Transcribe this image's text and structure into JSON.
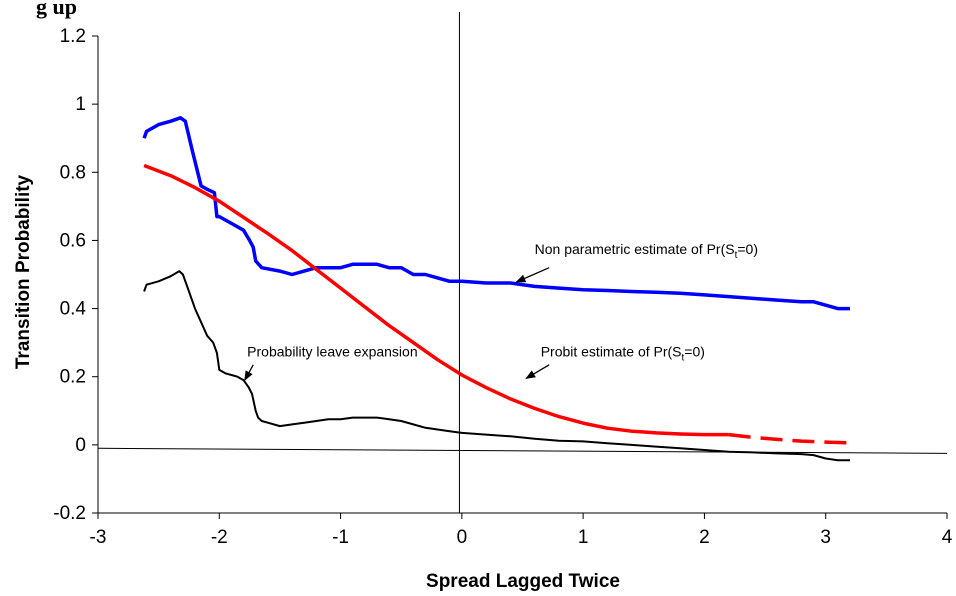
{
  "chart_data": {
    "type": "line",
    "title_fragment": "g up",
    "xlabel": "Spread Lagged Twice",
    "ylabel": "Transition Probability",
    "xlim": [
      -3,
      4
    ],
    "ylim": [
      -0.2,
      1.2
    ],
    "x_ticks": [
      -3,
      -2,
      -1,
      0,
      1,
      2,
      3,
      4
    ],
    "y_ticks": [
      -0.2,
      0,
      0.2,
      0.4,
      0.6,
      0.8,
      1,
      1.2
    ],
    "x_tick_labels": [
      "-3",
      "-2",
      "-1",
      "0",
      "1",
      "2",
      "3",
      "4"
    ],
    "y_tick_labels": [
      "-0.2",
      "0",
      "0.2",
      "0.4",
      "0.6",
      "0.8",
      "1",
      "1.2"
    ],
    "grid": false,
    "legend": "none",
    "series": [
      {
        "color": "#0000ff",
        "style": "solid",
        "x": [
          -2.62,
          -2.6,
          -2.5,
          -2.4,
          -2.32,
          -2.28,
          -2.22,
          -2.15,
          -2.1,
          -2.04,
          -2.02,
          -2.0,
          -1.9,
          -1.8,
          -1.75,
          -1.72,
          -1.7,
          -1.65,
          -1.5,
          -1.4,
          -1.3,
          -1.2,
          -1.1,
          -1.0,
          -0.9,
          -0.8,
          -0.7,
          -0.6,
          -0.5,
          -0.4,
          -0.3,
          -0.2,
          -0.1,
          0.0,
          0.2,
          0.4,
          0.6,
          0.8,
          1.0,
          1.2,
          1.4,
          1.6,
          1.8,
          2.0,
          2.2,
          2.4,
          2.6,
          2.8,
          2.9,
          3.0,
          3.1,
          3.2
        ],
        "y": [
          0.9,
          0.92,
          0.94,
          0.95,
          0.96,
          0.95,
          0.86,
          0.76,
          0.75,
          0.74,
          0.67,
          0.67,
          0.65,
          0.63,
          0.6,
          0.58,
          0.54,
          0.52,
          0.51,
          0.5,
          0.51,
          0.52,
          0.52,
          0.52,
          0.53,
          0.53,
          0.53,
          0.52,
          0.52,
          0.5,
          0.5,
          0.49,
          0.48,
          0.48,
          0.475,
          0.475,
          0.465,
          0.46,
          0.455,
          0.453,
          0.45,
          0.448,
          0.445,
          0.44,
          0.435,
          0.43,
          0.425,
          0.42,
          0.42,
          0.41,
          0.4,
          0.4
        ]
      },
      {
        "color": "#ff0000",
        "style": "solid",
        "x": [
          -2.62,
          -2.4,
          -2.2,
          -2.0,
          -1.8,
          -1.6,
          -1.4,
          -1.2,
          -1.0,
          -0.8,
          -0.6,
          -0.4,
          -0.2,
          0.0,
          0.2,
          0.4,
          0.6,
          0.8,
          1.0,
          1.2,
          1.4,
          1.6,
          1.8,
          2.0,
          2.2
        ],
        "y": [
          0.82,
          0.79,
          0.755,
          0.715,
          0.668,
          0.62,
          0.57,
          0.515,
          0.46,
          0.405,
          0.35,
          0.3,
          0.25,
          0.205,
          0.168,
          0.135,
          0.107,
          0.083,
          0.064,
          0.049,
          0.04,
          0.035,
          0.032,
          0.03,
          0.03
        ]
      },
      {
        "color": "#ff0000",
        "style": "dashed",
        "x": [
          2.2,
          2.4,
          2.6,
          2.8,
          3.0,
          3.2
        ],
        "y": [
          0.03,
          0.022,
          0.016,
          0.011,
          0.008,
          0.006
        ]
      },
      {
        "color": "#000000",
        "style": "solid",
        "x": [
          -2.62,
          -2.6,
          -2.5,
          -2.4,
          -2.33,
          -2.3,
          -2.25,
          -2.2,
          -2.15,
          -2.1,
          -2.05,
          -2.02,
          -2.0,
          -1.95,
          -1.9,
          -1.85,
          -1.8,
          -1.76,
          -1.73,
          -1.7,
          -1.68,
          -1.65,
          -1.6,
          -1.5,
          -1.4,
          -1.3,
          -1.2,
          -1.1,
          -1.0,
          -0.9,
          -0.8,
          -0.7,
          -0.6,
          -0.5,
          -0.4,
          -0.3,
          -0.2,
          -0.1,
          0.0,
          0.2,
          0.4,
          0.6,
          0.8,
          1.0,
          1.2,
          1.4,
          1.6,
          1.8,
          2.0,
          2.2,
          2.4,
          2.6,
          2.8,
          2.9,
          3.0,
          3.1,
          3.2
        ],
        "y": [
          0.45,
          0.47,
          0.48,
          0.495,
          0.51,
          0.5,
          0.45,
          0.4,
          0.36,
          0.32,
          0.3,
          0.27,
          0.22,
          0.21,
          0.205,
          0.2,
          0.19,
          0.17,
          0.15,
          0.1,
          0.08,
          0.07,
          0.065,
          0.055,
          0.06,
          0.065,
          0.07,
          0.075,
          0.075,
          0.08,
          0.08,
          0.08,
          0.075,
          0.07,
          0.06,
          0.05,
          0.045,
          0.04,
          0.035,
          0.03,
          0.025,
          0.018,
          0.012,
          0.01,
          0.005,
          0.0,
          -0.005,
          -0.01,
          -0.015,
          -0.02,
          -0.022,
          -0.025,
          -0.027,
          -0.03,
          -0.04,
          -0.045,
          -0.045
        ]
      }
    ],
    "reference_lines": {
      "zero_line": {
        "x": [
          -3,
          4
        ],
        "y": [
          -0.01,
          -0.025
        ]
      },
      "vertical_line": {
        "x": -0.02
      }
    },
    "annotations": [
      {
        "text_main": "Non parametric estimate of Pr(S",
        "text_sub": "t",
        "text_tail": "=0)",
        "text_xy": [
          0.6,
          0.56
        ],
        "arrow_from": [
          0.72,
          0.52
        ],
        "arrow_to": [
          0.45,
          0.478
        ]
      },
      {
        "text_main": "Probit estimate of Pr(S",
        "text_sub": "t",
        "text_tail": "=0)",
        "text_xy": [
          0.65,
          0.26
        ],
        "arrow_from": [
          0.72,
          0.235
        ],
        "arrow_to": [
          0.53,
          0.195
        ]
      },
      {
        "text": "Probability leave expansion",
        "text_xy": [
          -1.77,
          0.26
        ],
        "arrow_from": [
          -1.72,
          0.235
        ],
        "arrow_to": [
          -1.79,
          0.19
        ]
      }
    ]
  }
}
